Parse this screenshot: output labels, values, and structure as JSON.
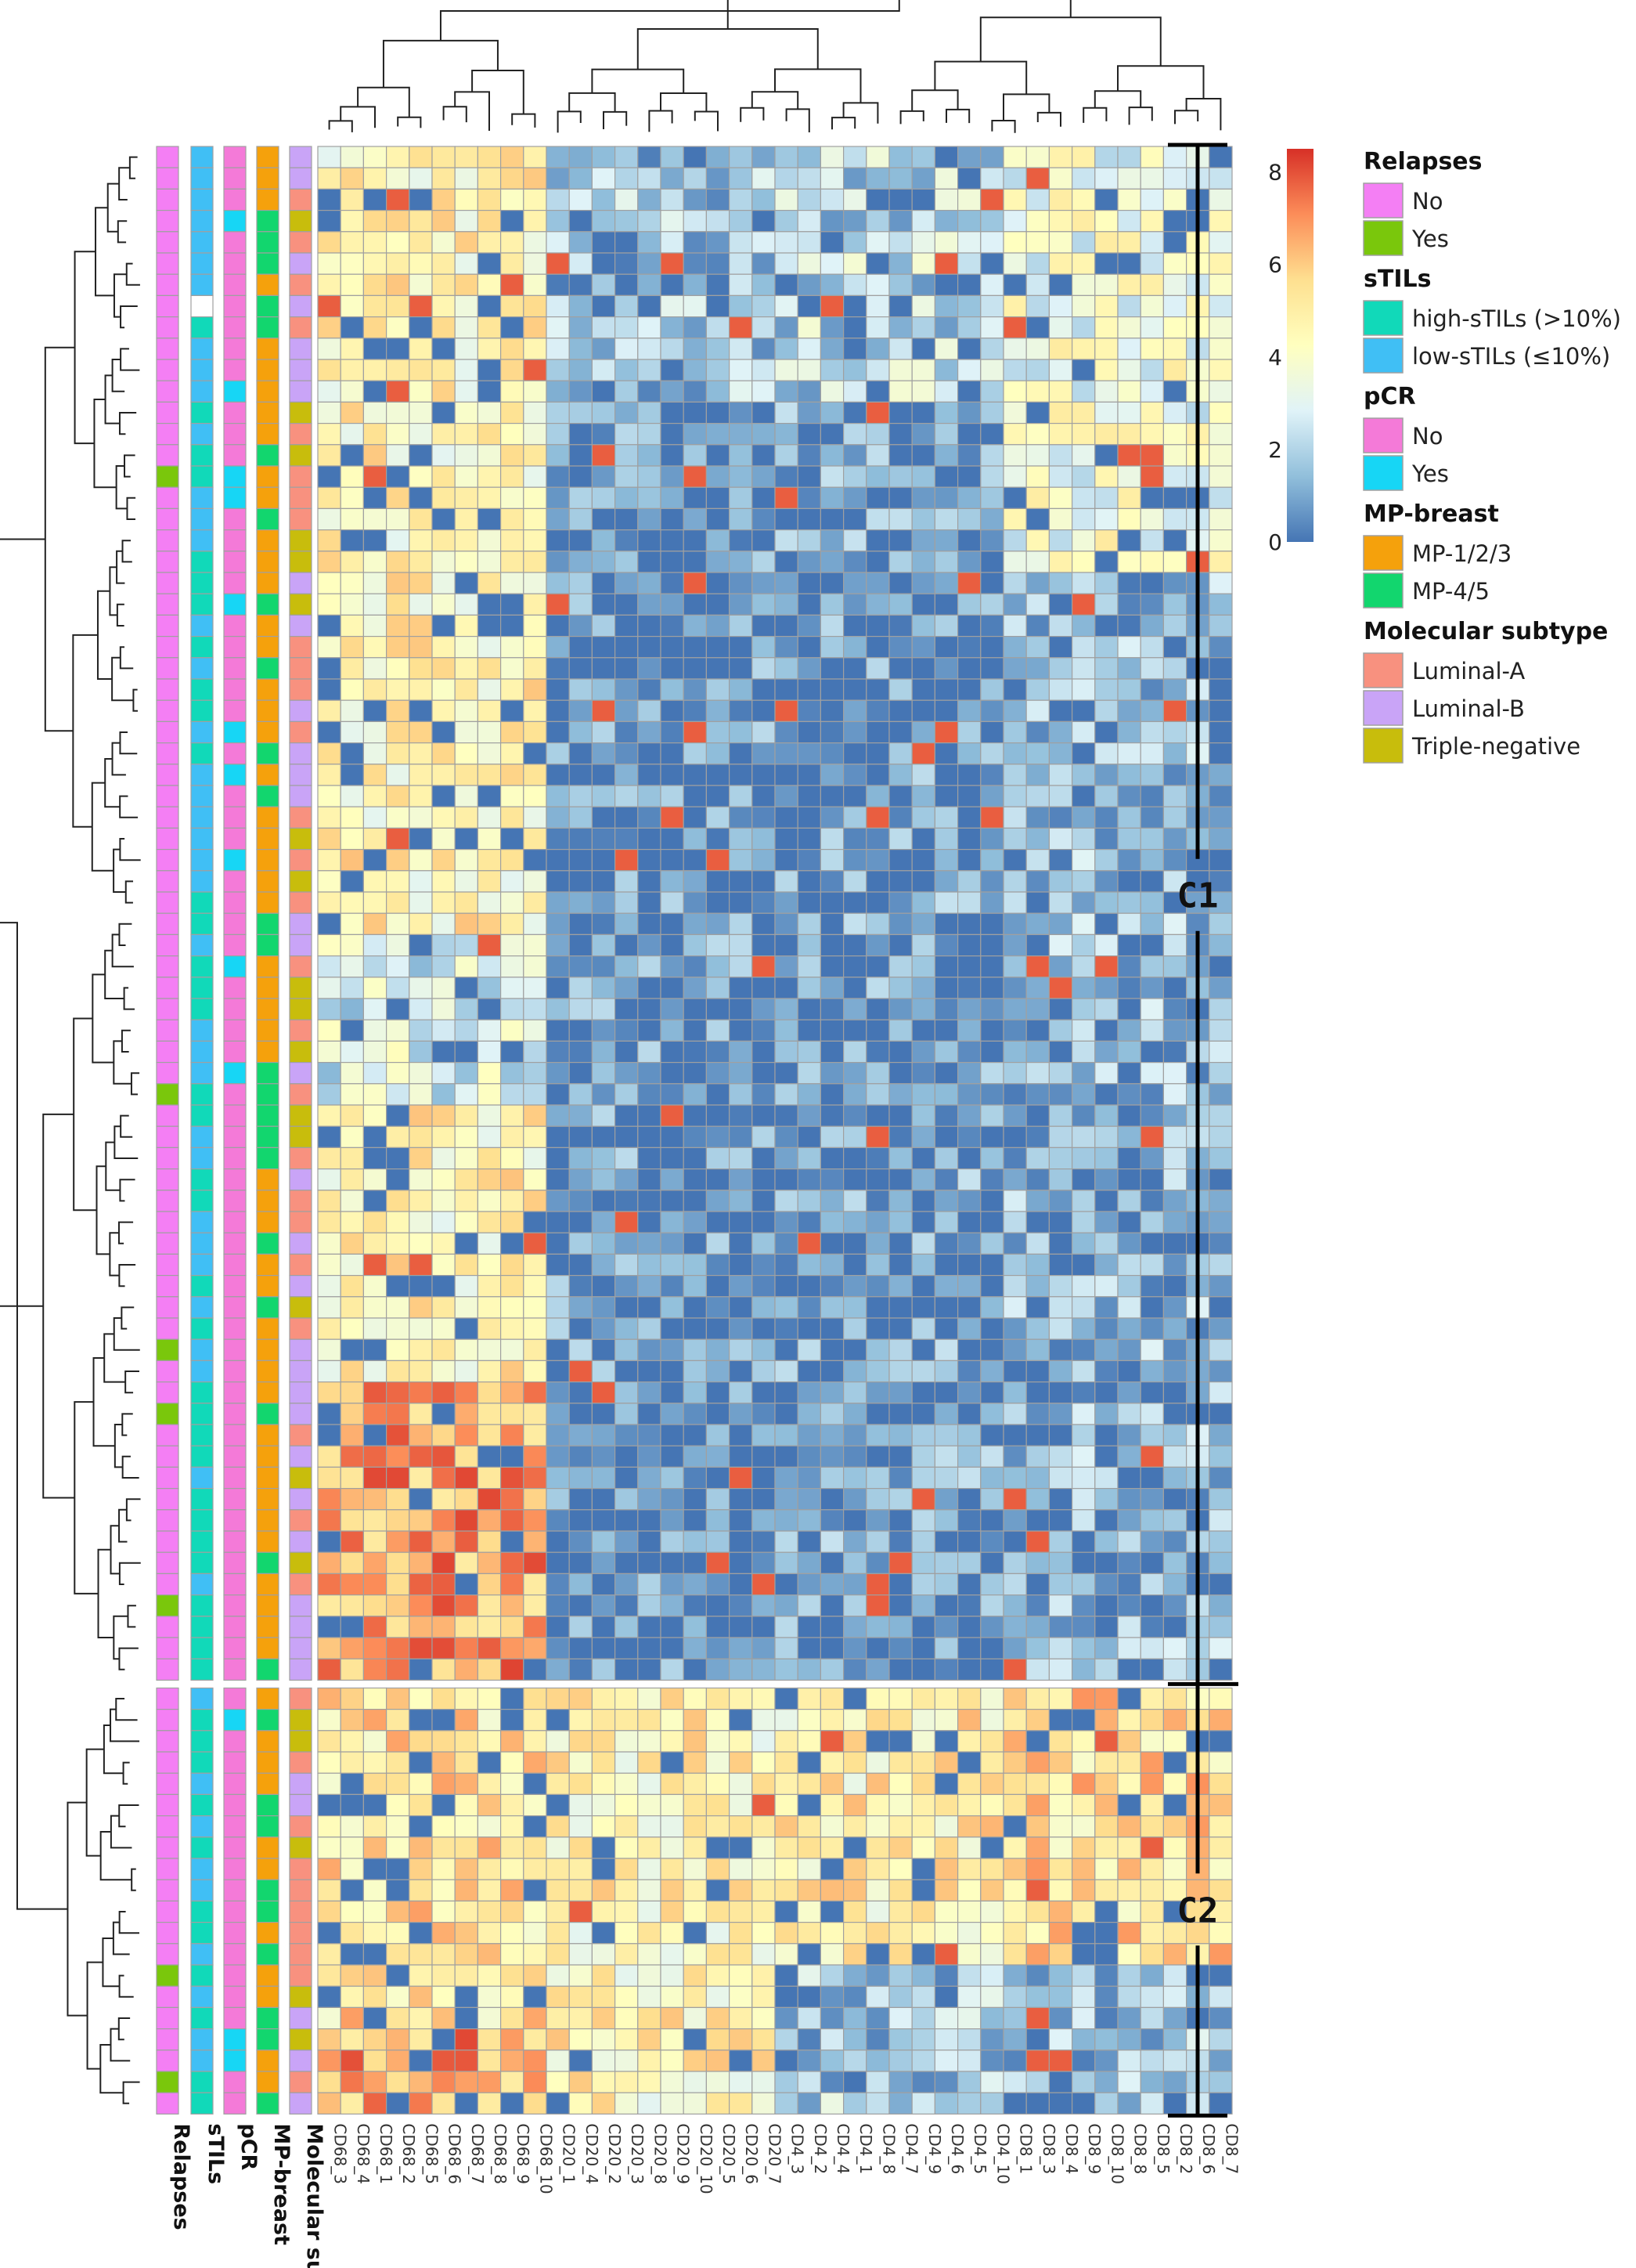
{
  "chart_data": {
    "type": "heatmap",
    "title": "",
    "color_scale": {
      "min": 0,
      "max": 8.5,
      "ticks": [
        0,
        2,
        4,
        6,
        8
      ],
      "stops": [
        "#4575b4",
        "#91bfdb",
        "#e0f3f8",
        "#ffffbf",
        "#fee090",
        "#fc8d59",
        "#d73027"
      ]
    },
    "columns": [
      "CD68_3",
      "CD68_4",
      "CD68_1",
      "CD68_2",
      "CD68_5",
      "CD68_6",
      "CD68_7",
      "CD68_8",
      "CD68_9",
      "CD68_10",
      "CD20_1",
      "CD20_4",
      "CD20_2",
      "CD20_3",
      "CD20_8",
      "CD20_9",
      "CD20_10",
      "CD20_5",
      "CD20_6",
      "CD20_7",
      "CD4_3",
      "CD4_2",
      "CD4_4",
      "CD4_1",
      "CD4_8",
      "CD4_7",
      "CD4_9",
      "CD4_6",
      "CD4_5",
      "CD4_10",
      "CD8_1",
      "CD8_3",
      "CD8_4",
      "CD8_9",
      "CD8_10",
      "CD8_8",
      "CD8_5",
      "CD8_2",
      "CD8_6",
      "CD8_7"
    ],
    "row_annotations": [
      "Relapses",
      "sTILs",
      "pCR",
      "MP-breast",
      "Molecular subtype"
    ],
    "clusters": [
      {
        "name": "C1",
        "rows": 72
      },
      {
        "name": "C2",
        "rows": 20
      }
    ],
    "legend": [
      {
        "title": "Relapses",
        "items": [
          {
            "label": "No",
            "color": "#f47ff4"
          },
          {
            "label": "Yes",
            "color": "#7ac70c"
          }
        ]
      },
      {
        "title": "sTILs",
        "items": [
          {
            "label": "high-sTILs (>10%)",
            "color": "#11d9b9"
          },
          {
            "label": "low-sTILs (≤10%)",
            "color": "#40bff5"
          }
        ]
      },
      {
        "title": "pCR",
        "items": [
          {
            "label": "No",
            "color": "#f47ad8"
          },
          {
            "label": "Yes",
            "color": "#17d6f5"
          }
        ]
      },
      {
        "title": "MP-breast",
        "items": [
          {
            "label": "MP-1/2/3",
            "color": "#f5a10c"
          },
          {
            "label": "MP-4/5",
            "color": "#12d66e"
          }
        ]
      },
      {
        "title": "Molecular subtype",
        "items": [
          {
            "label": "Luminal-A",
            "color": "#f8917f"
          },
          {
            "label": "Luminal-B",
            "color": "#c9a4f7"
          },
          {
            "label": "Triple-negative",
            "color": "#c8bd0c"
          }
        ]
      }
    ]
  }
}
